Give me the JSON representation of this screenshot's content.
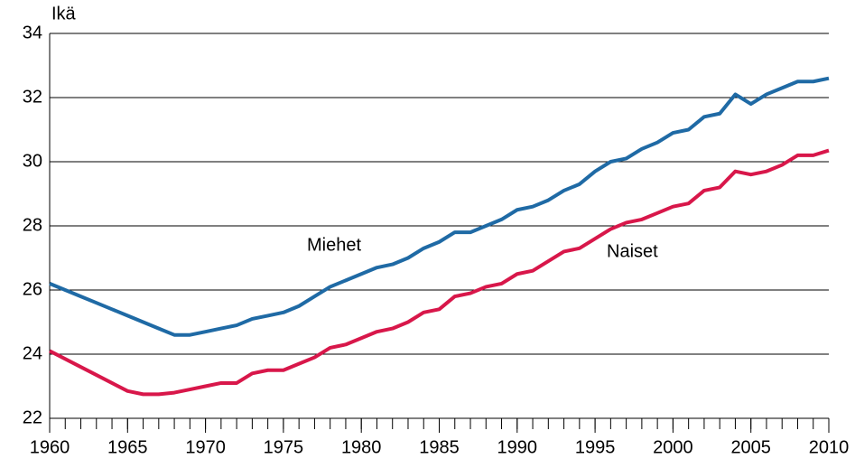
{
  "chart_data": {
    "type": "line",
    "y_label": "Ikä",
    "x": [
      1960,
      1961,
      1962,
      1963,
      1964,
      1965,
      1966,
      1967,
      1968,
      1969,
      1970,
      1971,
      1972,
      1973,
      1974,
      1975,
      1976,
      1977,
      1978,
      1979,
      1980,
      1981,
      1982,
      1983,
      1984,
      1985,
      1986,
      1987,
      1988,
      1989,
      1990,
      1991,
      1992,
      1993,
      1994,
      1995,
      1996,
      1997,
      1998,
      1999,
      2000,
      2001,
      2002,
      2003,
      2004,
      2005,
      2006,
      2007,
      2008,
      2009,
      2010
    ],
    "series": [
      {
        "name": "Miehet",
        "color": "#1f6aa5",
        "values": [
          26.2,
          26.0,
          25.8,
          25.6,
          25.4,
          25.2,
          25.0,
          24.8,
          24.6,
          24.6,
          24.7,
          24.8,
          24.9,
          25.1,
          25.2,
          25.3,
          25.5,
          25.8,
          26.1,
          26.3,
          26.5,
          26.7,
          26.8,
          27.0,
          27.3,
          27.5,
          27.8,
          27.8,
          28.0,
          28.2,
          28.5,
          28.6,
          28.8,
          29.1,
          29.3,
          29.7,
          30.0,
          30.1,
          30.4,
          30.6,
          30.9,
          31.0,
          31.4,
          31.5,
          32.1,
          31.8,
          32.1,
          32.3,
          32.5,
          32.5,
          32.6
        ]
      },
      {
        "name": "Naiset",
        "color": "#d8174a",
        "values": [
          24.1,
          23.85,
          23.6,
          23.35,
          23.1,
          22.85,
          22.75,
          22.75,
          22.8,
          22.9,
          23.0,
          23.1,
          23.1,
          23.4,
          23.5,
          23.5,
          23.7,
          23.9,
          24.2,
          24.3,
          24.5,
          24.7,
          24.8,
          25.0,
          25.3,
          25.4,
          25.8,
          25.9,
          26.1,
          26.2,
          26.5,
          26.6,
          26.9,
          27.2,
          27.3,
          27.6,
          27.9,
          28.1,
          28.2,
          28.4,
          28.6,
          28.7,
          29.1,
          29.2,
          29.7,
          29.6,
          29.7,
          29.9,
          30.2,
          30.2,
          30.35
        ]
      }
    ],
    "xlim": [
      1960,
      2010
    ],
    "xticks": [
      1960,
      1965,
      1970,
      1975,
      1980,
      1985,
      1990,
      1995,
      2000,
      2005,
      2010
    ],
    "ylim": [
      22,
      34
    ],
    "yticks": [
      22,
      24,
      26,
      28,
      30,
      32,
      34
    ],
    "grid": true
  }
}
